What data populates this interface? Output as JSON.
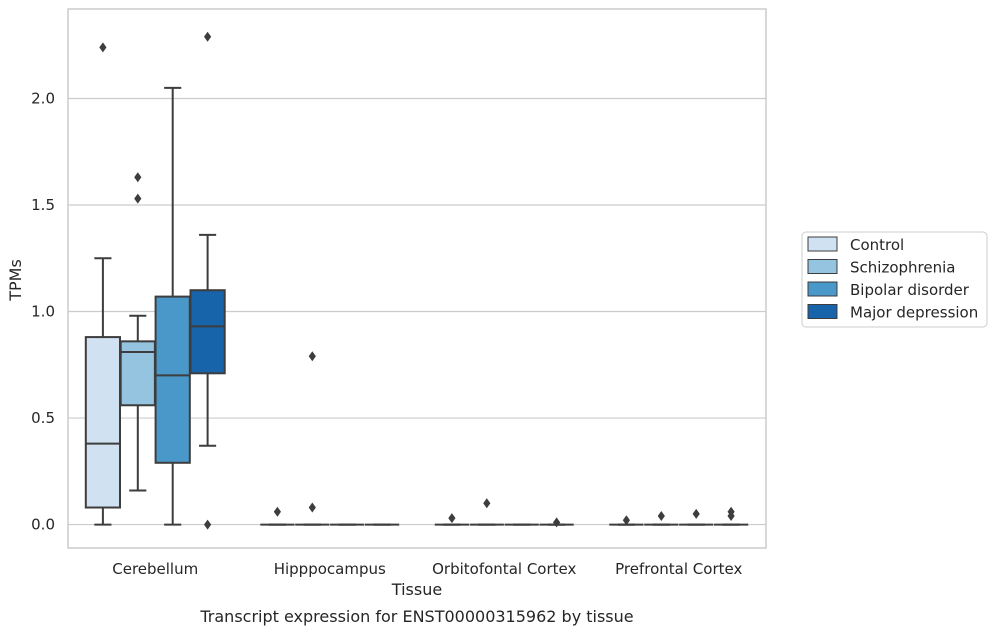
{
  "chart_data": {
    "type": "box",
    "caption": "Transcript expression for ENST00000315962 by tissue",
    "xlabel": "Tissue",
    "ylabel": "TPMs",
    "ylim": [
      -0.11,
      2.42
    ],
    "yticks": [
      0.0,
      0.5,
      1.0,
      1.5,
      2.0
    ],
    "ytick_labels": [
      "0.0",
      "0.5",
      "1.0",
      "1.5",
      "2.0"
    ],
    "grid": "horizontal",
    "legend_position": "outside-right",
    "categories": [
      "Cerebellum",
      "Hipppocampus",
      "Orbitofontal Cortex",
      "Prefrontal Cortex"
    ],
    "series": [
      {
        "name": "Control",
        "color": "#d0e1f2",
        "boxes": [
          {
            "whislo": 0.0,
            "q1": 0.08,
            "med": 0.38,
            "q3": 0.88,
            "whishi": 1.25,
            "fliers": [
              2.24
            ]
          },
          {
            "whislo": 0.0,
            "q1": 0.0,
            "med": 0.0,
            "q3": 0.0,
            "whishi": 0.0,
            "fliers": [
              0.06
            ]
          },
          {
            "whislo": 0.0,
            "q1": 0.0,
            "med": 0.0,
            "q3": 0.0,
            "whishi": 0.0,
            "fliers": [
              0.03
            ]
          },
          {
            "whislo": 0.0,
            "q1": 0.0,
            "med": 0.0,
            "q3": 0.0,
            "whishi": 0.0,
            "fliers": [
              0.02
            ]
          }
        ]
      },
      {
        "name": "Schizophrenia",
        "color": "#94c4df",
        "boxes": [
          {
            "whislo": 0.16,
            "q1": 0.56,
            "med": 0.81,
            "q3": 0.86,
            "whishi": 0.98,
            "fliers": [
              1.53,
              1.63
            ]
          },
          {
            "whislo": 0.0,
            "q1": 0.0,
            "med": 0.0,
            "q3": 0.0,
            "whishi": 0.0,
            "fliers": [
              0.08,
              0.79
            ]
          },
          {
            "whislo": 0.0,
            "q1": 0.0,
            "med": 0.0,
            "q3": 0.0,
            "whishi": 0.0,
            "fliers": [
              0.1
            ]
          },
          {
            "whislo": 0.0,
            "q1": 0.0,
            "med": 0.0,
            "q3": 0.0,
            "whishi": 0.0,
            "fliers": [
              0.04
            ]
          }
        ]
      },
      {
        "name": "Bipolar disorder",
        "color": "#4a98c9",
        "boxes": [
          {
            "whislo": 0.0,
            "q1": 0.29,
            "med": 0.7,
            "q3": 1.07,
            "whishi": 2.05,
            "fliers": []
          },
          {
            "whislo": 0.0,
            "q1": 0.0,
            "med": 0.0,
            "q3": 0.0,
            "whishi": 0.0,
            "fliers": []
          },
          {
            "whislo": 0.0,
            "q1": 0.0,
            "med": 0.0,
            "q3": 0.0,
            "whishi": 0.0,
            "fliers": []
          },
          {
            "whislo": 0.0,
            "q1": 0.0,
            "med": 0.0,
            "q3": 0.0,
            "whishi": 0.0,
            "fliers": [
              0.05
            ]
          }
        ]
      },
      {
        "name": "Major depression",
        "color": "#1764ab",
        "boxes": [
          {
            "whislo": 0.37,
            "q1": 0.71,
            "med": 0.93,
            "q3": 1.1,
            "whishi": 1.36,
            "fliers": [
              0.0,
              2.29
            ]
          },
          {
            "whislo": 0.0,
            "q1": 0.0,
            "med": 0.0,
            "q3": 0.0,
            "whishi": 0.0,
            "fliers": []
          },
          {
            "whislo": 0.0,
            "q1": 0.0,
            "med": 0.0,
            "q3": 0.0,
            "whishi": 0.0,
            "fliers": [
              0.01
            ]
          },
          {
            "whislo": 0.0,
            "q1": 0.0,
            "med": 0.0,
            "q3": 0.0,
            "whishi": 0.0,
            "fliers": [
              0.04,
              0.06
            ]
          }
        ]
      }
    ]
  }
}
